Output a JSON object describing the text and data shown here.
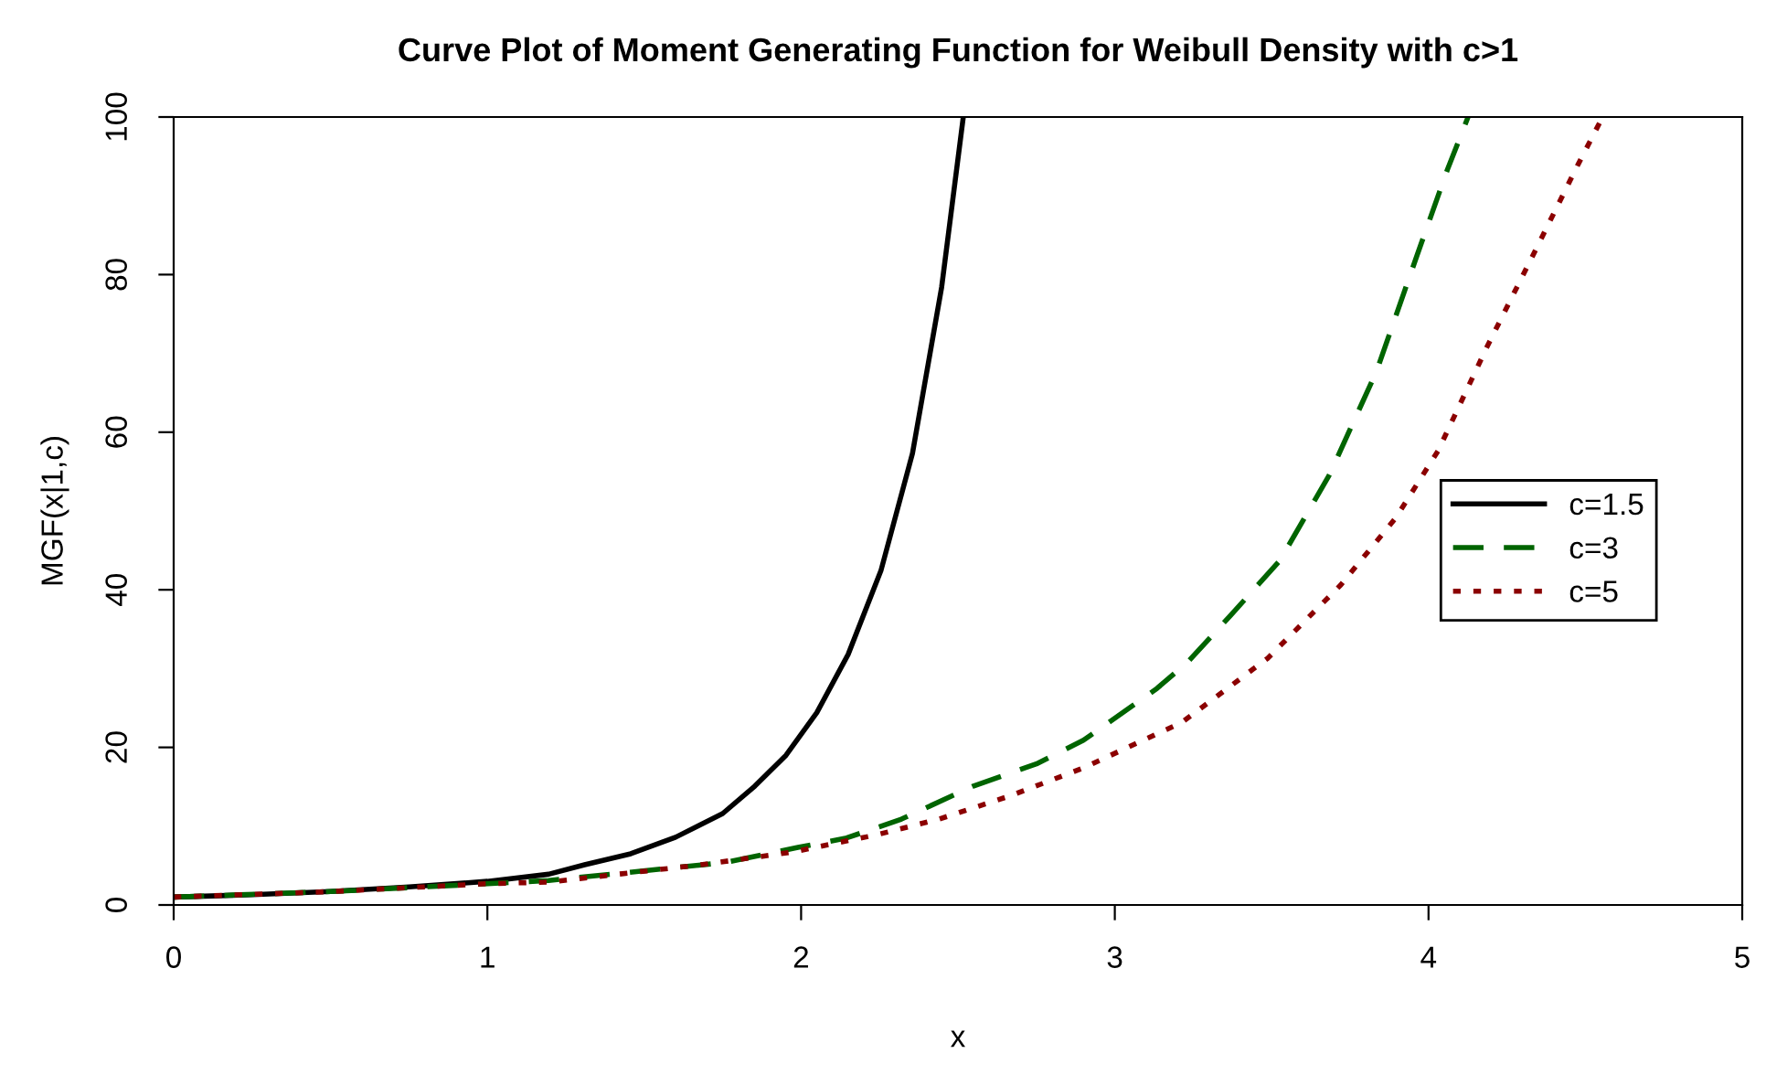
{
  "chart_data": {
    "type": "line",
    "title": "Curve Plot of Moment Generating Function for Weibull Density with c>1",
    "xlabel": "x",
    "ylabel": "MGF(x|1,c)",
    "xlim": [
      0,
      5
    ],
    "ylim": [
      0,
      100
    ],
    "xticks": [
      0,
      1,
      2,
      3,
      4,
      5
    ],
    "yticks": [
      0,
      20,
      40,
      60,
      80,
      100
    ],
    "grid": false,
    "legend": "right",
    "series": [
      {
        "name": "c=1.5",
        "color": "#000000",
        "line_style": "solid",
        "x": [
          0,
          0.25,
          0.5,
          0.75,
          1.0,
          1.195,
          1.31,
          1.457,
          1.6,
          1.75,
          1.853,
          1.952,
          2.05,
          2.15,
          2.255,
          2.355,
          2.448,
          2.517
        ],
        "values": [
          1,
          1.3,
          1.7,
          2.3,
          3.0,
          3.9,
          5.1,
          6.5,
          8.6,
          11.6,
          15.1,
          19.0,
          24.4,
          31.8,
          42.5,
          57.3,
          78.4,
          100
        ]
      },
      {
        "name": "c=3",
        "color": "#006400",
        "line_style": "dashed",
        "x": [
          0,
          0.5,
          1.0,
          1.195,
          1.76,
          1.99,
          2.145,
          2.32,
          2.55,
          2.75,
          2.9,
          3.135,
          3.234,
          3.368,
          3.526,
          3.683,
          3.834,
          3.963,
          4.06,
          4.126
        ],
        "values": [
          1,
          1.7,
          2.7,
          3.1,
          5.4,
          7.3,
          8.5,
          10.9,
          15.1,
          17.9,
          20.9,
          27.5,
          30.9,
          36.7,
          43.7,
          54.5,
          67.7,
          82.4,
          93.3,
          100
        ]
      },
      {
        "name": "c=5",
        "color": "#8b0000",
        "line_style": "dotted",
        "x": [
          0,
          0.5,
          1.0,
          1.195,
          1.68,
          1.97,
          2.24,
          2.44,
          2.67,
          2.9,
          3.215,
          3.487,
          3.72,
          3.895,
          4.03,
          4.186,
          4.341,
          4.477,
          4.555
        ],
        "values": [
          1,
          1.7,
          2.7,
          2.9,
          5.1,
          6.7,
          8.9,
          10.9,
          13.9,
          17.4,
          23.2,
          31.3,
          40.6,
          49.1,
          57.6,
          70.8,
          83.1,
          94.0,
          100
        ]
      }
    ]
  }
}
